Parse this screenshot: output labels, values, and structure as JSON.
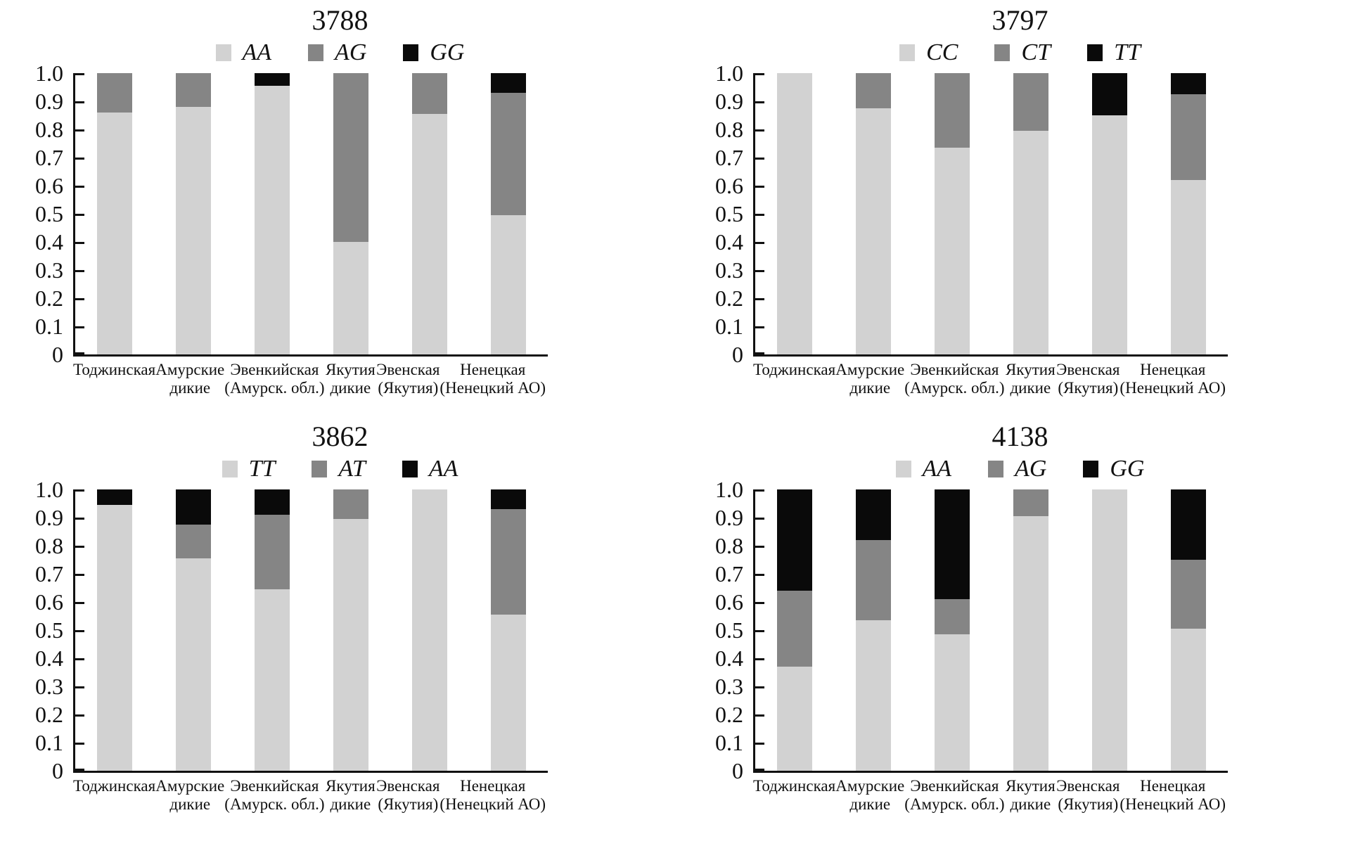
{
  "figure": {
    "background": "#ffffff",
    "text_color": "#111111"
  },
  "colors": {
    "light": "#d2d2d2",
    "mid": "#858585",
    "dark": "#0a0a0a"
  },
  "y_axis": {
    "min": 0,
    "max": 1.0,
    "tick_step": 0.1,
    "tick_labels": [
      "1.0",
      "0.9",
      "0.8",
      "0.7",
      "0.6",
      "0.5",
      "0.4",
      "0.3",
      "0.2",
      "0.1",
      "0"
    ]
  },
  "categories_display": [
    [
      "Тоджинская"
    ],
    [
      "Амурские",
      "дикие"
    ],
    [
      "Эвенкийская",
      "(Амурск. обл.)"
    ],
    [
      "Якутия",
      "дикие"
    ],
    [
      "Эвенская",
      "(Якутия)"
    ],
    [
      "Ненецкая",
      "(Ненецкий АО)"
    ]
  ],
  "chart_data": [
    {
      "type": "bar",
      "stacked": true,
      "title": "3788",
      "categories": [
        "Тоджинская",
        "Амурские дикие",
        "Эвенкийская (Амурск. обл.)",
        "Якутия дикие",
        "Эвенская (Якутия)",
        "Ненецкая (Ненецкий АО)"
      ],
      "ylim": [
        0,
        1.0
      ],
      "grid": false,
      "legend_position": "top",
      "series": [
        {
          "name": "AA",
          "color": "light",
          "values": [
            0.86,
            0.88,
            0.955,
            0.4,
            0.855,
            0.495
          ]
        },
        {
          "name": "AG",
          "color": "mid",
          "values": [
            0.14,
            0.12,
            0.0,
            0.6,
            0.145,
            0.435
          ]
        },
        {
          "name": "GG",
          "color": "dark",
          "values": [
            0.0,
            0.0,
            0.045,
            0.0,
            0.0,
            0.07
          ]
        }
      ]
    },
    {
      "type": "bar",
      "stacked": true,
      "title": "3797",
      "categories": [
        "Тоджинская",
        "Амурские дикие",
        "Эвенкийская (Амурск. обл.)",
        "Якутия дикие",
        "Эвенская (Якутия)",
        "Ненецкая (Ненецкий АО)"
      ],
      "ylim": [
        0,
        1.0
      ],
      "grid": false,
      "legend_position": "top",
      "series": [
        {
          "name": "CC",
          "color": "light",
          "values": [
            1.0,
            0.875,
            0.735,
            0.795,
            0.85,
            0.62
          ]
        },
        {
          "name": "CT",
          "color": "mid",
          "values": [
            0.0,
            0.125,
            0.265,
            0.205,
            0.0,
            0.305
          ]
        },
        {
          "name": "TT",
          "color": "dark",
          "values": [
            0.0,
            0.0,
            0.0,
            0.0,
            0.15,
            0.075
          ]
        }
      ]
    },
    {
      "type": "bar",
      "stacked": true,
      "title": "3862",
      "categories": [
        "Тоджинская",
        "Амурские дикие",
        "Эвенкийская (Амурск. обл.)",
        "Якутия дикие",
        "Эвенская (Якутия)",
        "Ненецкая (Ненецкий АО)"
      ],
      "ylim": [
        0,
        1.0
      ],
      "grid": false,
      "legend_position": "top",
      "series": [
        {
          "name": "TT",
          "color": "light",
          "values": [
            0.945,
            0.755,
            0.645,
            0.895,
            1.0,
            0.555
          ]
        },
        {
          "name": "AT",
          "color": "mid",
          "values": [
            0.0,
            0.12,
            0.265,
            0.105,
            0.0,
            0.375
          ]
        },
        {
          "name": "AA",
          "color": "dark",
          "values": [
            0.055,
            0.125,
            0.09,
            0.0,
            0.0,
            0.07
          ]
        }
      ]
    },
    {
      "type": "bar",
      "stacked": true,
      "title": "4138",
      "categories": [
        "Тоджинская",
        "Амурские дикие",
        "Эвенкийская (Амурск. обл.)",
        "Якутия дикие",
        "Эвенская (Якутия)",
        "Ненецкая (Ненецкий АО)"
      ],
      "ylim": [
        0,
        1.0
      ],
      "grid": false,
      "legend_position": "top",
      "series": [
        {
          "name": "AA",
          "color": "light",
          "values": [
            0.37,
            0.535,
            0.485,
            0.905,
            1.0,
            0.505
          ]
        },
        {
          "name": "AG",
          "color": "mid",
          "values": [
            0.27,
            0.285,
            0.125,
            0.095,
            0.0,
            0.245
          ]
        },
        {
          "name": "GG",
          "color": "dark",
          "values": [
            0.36,
            0.18,
            0.39,
            0.0,
            0.0,
            0.25
          ]
        }
      ]
    }
  ]
}
